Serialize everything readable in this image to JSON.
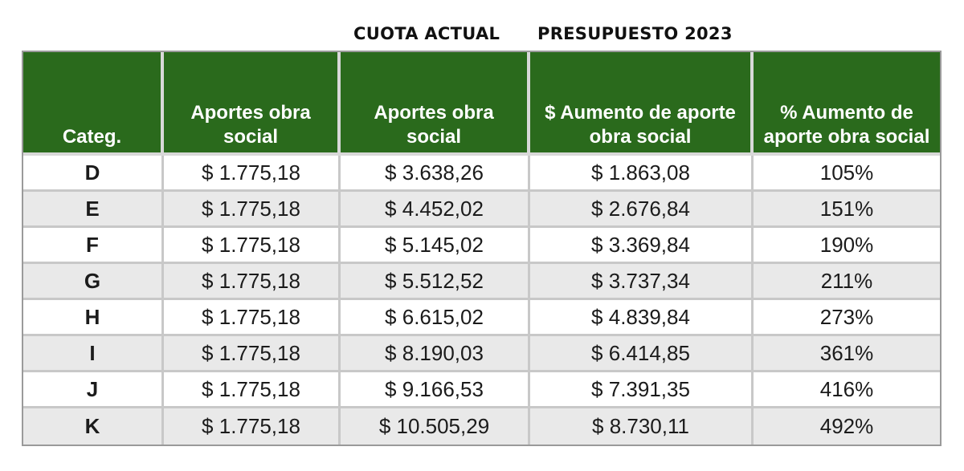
{
  "header": {
    "cuota_actual": "CUOTA ACTUAL",
    "presupuesto": "PRESUPUESTO 2023"
  },
  "table": {
    "columns": [
      "Categ.",
      "Aportes obra social",
      "Aportes obra social",
      "$ Aumento de aporte obra social",
      "% Aumento de aporte obra social"
    ],
    "rows": [
      [
        "D",
        "$ 1.775,18",
        "$ 3.638,26",
        "$ 1.863,08",
        "105%"
      ],
      [
        "E",
        "$ 1.775,18",
        "$ 4.452,02",
        "$ 2.676,84",
        "151%"
      ],
      [
        "F",
        "$ 1.775,18",
        "$ 5.145,02",
        "$ 3.369,84",
        "190%"
      ],
      [
        "G",
        "$ 1.775,18",
        "$ 5.512,52",
        "$ 3.737,34",
        "211%"
      ],
      [
        "H",
        "$ 1.775,18",
        "$ 6.615,02",
        "$ 4.839,84",
        "273%"
      ],
      [
        "I",
        "$ 1.775,18",
        "$ 8.190,03",
        "$ 6.414,85",
        "361%"
      ],
      [
        "J",
        "$ 1.775,18",
        "$ 9.166,53",
        "$ 7.391,35",
        "416%"
      ],
      [
        "K",
        "$ 1.775,18",
        "$ 10.505,29",
        "$ 8.730,11",
        "492%"
      ]
    ]
  },
  "chart_data": {
    "type": "table",
    "column_groups": [
      "CUOTA ACTUAL",
      "PRESUPUESTO 2023"
    ],
    "columns": [
      "Categ.",
      "Aportes obra social",
      "Aportes obra social",
      "$ Aumento de aporte obra social",
      "% Aumento de aporte obra social"
    ],
    "categories": [
      "D",
      "E",
      "F",
      "G",
      "H",
      "I",
      "J",
      "K"
    ],
    "series": [
      {
        "name": "CUOTA ACTUAL",
        "values": [
          1775.18,
          1775.18,
          1775.18,
          1775.18,
          1775.18,
          1775.18,
          1775.18,
          1775.18
        ]
      },
      {
        "name": "PRESUPUESTO 2023",
        "values": [
          3638.26,
          4452.02,
          5145.02,
          5512.52,
          6615.02,
          8190.03,
          9166.53,
          10505.29
        ]
      },
      {
        "name": "$ Aumento de aporte obra social",
        "values": [
          1863.08,
          2676.84,
          3369.84,
          3737.34,
          4839.84,
          6414.85,
          7391.35,
          8730.11
        ]
      },
      {
        "name": "% Aumento de aporte obra social",
        "values": [
          105,
          151,
          190,
          211,
          273,
          361,
          416,
          492
        ]
      }
    ],
    "colors": {
      "header_bg": "#2a6a1c",
      "header_text": "#ffffff",
      "row_alt": "#e9e9e9"
    }
  }
}
